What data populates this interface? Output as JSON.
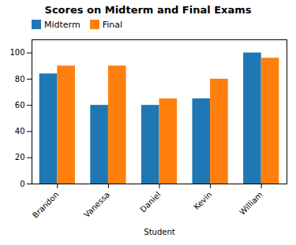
{
  "chart_data": {
    "type": "bar",
    "title": "Scores on Midterm and Final Exams",
    "xlabel": "Student",
    "categories": [
      "Brandon",
      "Vanessa",
      "Daniel",
      "Kevin",
      "William"
    ],
    "series": [
      {
        "name": "Midterm",
        "color": "#1f77b4",
        "values": [
          84,
          60,
          60,
          65,
          100
        ]
      },
      {
        "name": "Final",
        "color": "#ff7f0e",
        "values": [
          90,
          90,
          65,
          80,
          96
        ]
      }
    ],
    "ylim": [
      0,
      110
    ],
    "yticks": [
      0,
      20,
      40,
      60,
      80,
      100
    ],
    "legend": "upper left"
  }
}
